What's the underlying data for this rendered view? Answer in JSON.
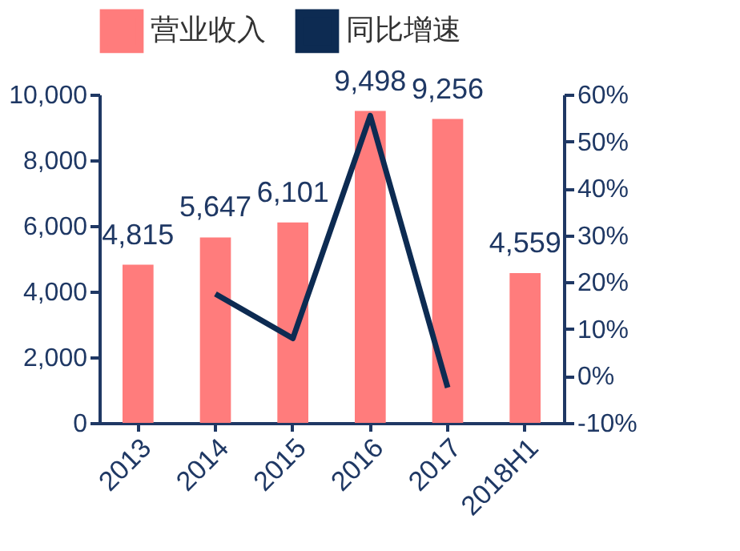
{
  "chart_data": {
    "type": "bar",
    "categories": [
      "2013",
      "2014",
      "2015",
      "2016",
      "2017",
      "2018H1"
    ],
    "series": [
      {
        "name": "营业收入",
        "color": "#ff7c7c",
        "values": [
          4815,
          5647,
          6101,
          9498,
          9256,
          4559
        ],
        "value_labels": [
          "4,815",
          "5,647",
          "6,101",
          "9,498",
          "9,256",
          "4,559"
        ]
      },
      {
        "name": "同比增速",
        "type": "line",
        "axis": "y2",
        "color": "#0d2b52",
        "values": [
          null,
          17.5,
          8,
          55.5,
          -2.5,
          null
        ]
      }
    ],
    "ylim": [
      0,
      10000
    ],
    "yticks": [
      {
        "value": 0,
        "label": "0"
      },
      {
        "value": 2000,
        "label": "2,000"
      },
      {
        "value": 4000,
        "label": "4,000"
      },
      {
        "value": 6000,
        "label": "6,000"
      },
      {
        "value": 8000,
        "label": "8,000"
      },
      {
        "value": 10000,
        "label": "10,000"
      }
    ],
    "y2lim": [
      -10,
      60
    ],
    "y2ticks": [
      {
        "value": -10,
        "label": "-10%"
      },
      {
        "value": 0,
        "label": "0%"
      },
      {
        "value": 10,
        "label": "10%"
      },
      {
        "value": 20,
        "label": "20%"
      },
      {
        "value": 30,
        "label": "30%"
      },
      {
        "value": 40,
        "label": "40%"
      },
      {
        "value": 50,
        "label": "50%"
      },
      {
        "value": 60,
        "label": "60%"
      }
    ],
    "grid": false,
    "legend": "top"
  }
}
